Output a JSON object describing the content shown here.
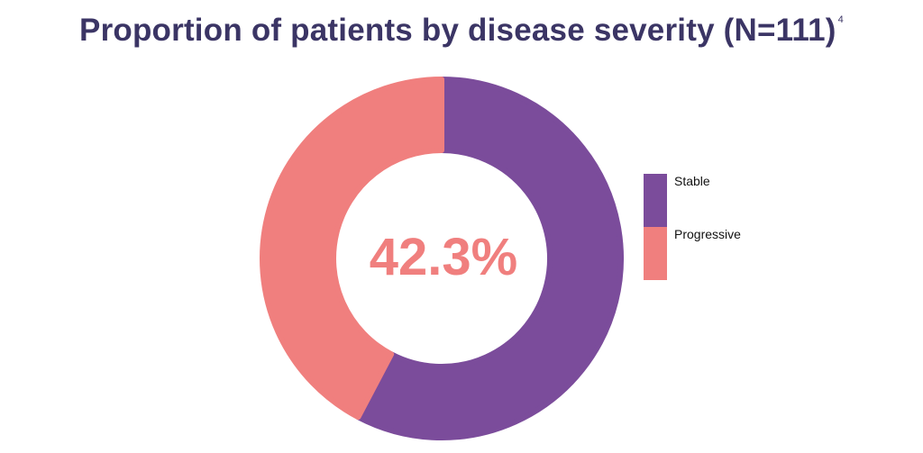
{
  "title": {
    "text": "Proportion of patients by disease severity (N=111)",
    "superscript": "4"
  },
  "chart_data": {
    "type": "pie",
    "style": "donut",
    "center_label": "42.3%",
    "slices": [
      {
        "label": "Stable",
        "value": 57.7,
        "color": "#7b4c9b"
      },
      {
        "label": "Progressive",
        "value": 42.3,
        "color": "#f07f7e"
      }
    ],
    "legend_position": "right"
  }
}
